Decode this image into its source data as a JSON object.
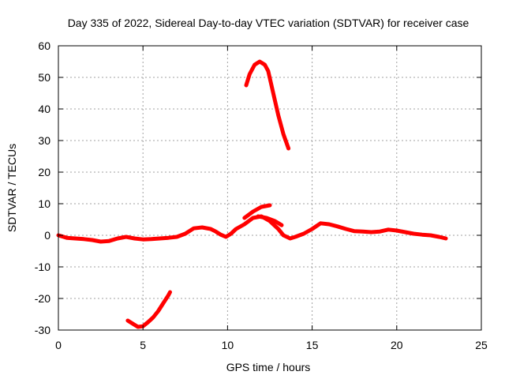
{
  "chart_data": {
    "type": "line",
    "title": "Day 335 of 2022, Sidereal Day-to-day VTEC variation (SDTVAR) for receiver case",
    "xlabel": "GPS time / hours",
    "ylabel": "SDTVAR / TECUs",
    "xlim": [
      0,
      25
    ],
    "ylim": [
      -30,
      60
    ],
    "x_ticks": [
      0,
      5,
      10,
      15,
      20,
      25
    ],
    "y_ticks": [
      -30,
      -20,
      -10,
      0,
      10,
      20,
      30,
      40,
      50,
      60
    ],
    "grid": true,
    "series_color": "#ff0000",
    "series": [
      {
        "name": "main-trace",
        "x": [
          0,
          0.5,
          1,
          1.5,
          2,
          2.5,
          3,
          3.5,
          4,
          4.5,
          5,
          5.5,
          6,
          6.5,
          7,
          7.5,
          8,
          8.5,
          9,
          9.3,
          9.6,
          9.9,
          10.2,
          10.5,
          11,
          11.5,
          12,
          12.5,
          13,
          13.3,
          13.7,
          14,
          14.5,
          15,
          15.5,
          16,
          16.5,
          17,
          17.5,
          18,
          18.5,
          19,
          19.5,
          20,
          20.5,
          21,
          21.5,
          22,
          22.5,
          22.9
        ],
        "y": [
          0,
          -0.8,
          -1,
          -1.2,
          -1.5,
          -2,
          -1.8,
          -1,
          -0.5,
          -1,
          -1.3,
          -1.2,
          -1,
          -0.8,
          -0.5,
          0.5,
          2.2,
          2.5,
          2,
          1.2,
          0.2,
          -0.5,
          0.5,
          2,
          3.5,
          5.5,
          6,
          4.5,
          2,
          0,
          -1,
          -0.5,
          0.5,
          2,
          3.8,
          3.5,
          2.8,
          2,
          1.3,
          1.2,
          1,
          1.2,
          1.8,
          1.5,
          1,
          0.5,
          0.2,
          0,
          -0.5,
          -1
        ]
      },
      {
        "name": "secondary-trace",
        "x": [
          11.0,
          11.5,
          12.0,
          12.5
        ],
        "y": [
          5.5,
          7.5,
          9,
          9.5
        ]
      },
      {
        "name": "tail-trace",
        "x": [
          11.8,
          12.3,
          12.8,
          13.2
        ],
        "y": [
          6,
          5.5,
          4.5,
          3.2
        ]
      },
      {
        "name": "upper-arc",
        "x": [
          11.1,
          11.3,
          11.6,
          11.9,
          12.2,
          12.4,
          12.7,
          13.0,
          13.3,
          13.6
        ],
        "y": [
          47.5,
          51,
          54,
          55,
          54,
          52,
          45,
          38,
          32,
          27.5
        ]
      },
      {
        "name": "lower-arc",
        "x": [
          4.1,
          4.4,
          4.7,
          5.0,
          5.3,
          5.6,
          5.9,
          6.2,
          6.5,
          6.6
        ],
        "y": [
          -27,
          -28,
          -29,
          -28.8,
          -27.5,
          -26,
          -24,
          -21.5,
          -19,
          -18
        ]
      }
    ]
  }
}
